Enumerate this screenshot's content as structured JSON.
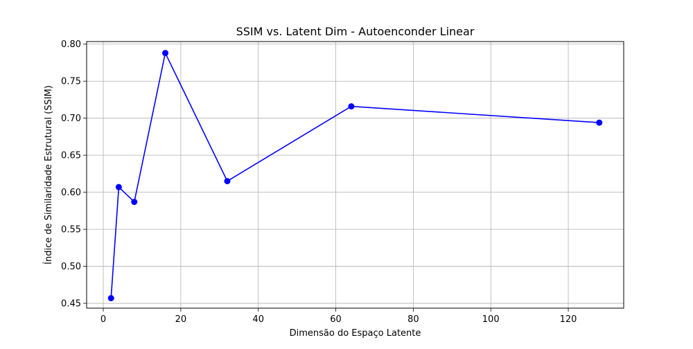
{
  "chart_data": {
    "type": "line",
    "title": "SSIM vs. Latent Dim - Autoenconder Linear",
    "xlabel": "Dimensão do Espaço Latente",
    "ylabel": "Índice de Similaridade Estrutural (SSIM)",
    "xlim": [
      -4.3,
      134.3
    ],
    "ylim": [
      0.4435,
      0.8035
    ],
    "xticks": [
      0,
      20,
      40,
      60,
      80,
      100,
      120
    ],
    "yticks": [
      0.45,
      0.5,
      0.55,
      0.6,
      0.65,
      0.7,
      0.75,
      0.8
    ],
    "xtick_labels": [
      "0",
      "20",
      "40",
      "60",
      "80",
      "100",
      "120"
    ],
    "ytick_labels": [
      "0.45",
      "0.50",
      "0.55",
      "0.60",
      "0.65",
      "0.70",
      "0.75",
      "0.80"
    ],
    "grid": true,
    "series": [
      {
        "x": [
          2,
          4,
          8,
          16,
          32,
          64,
          128
        ],
        "values": [
          0.457,
          0.607,
          0.587,
          0.788,
          0.615,
          0.716,
          0.694
        ],
        "color": "#0000ff",
        "marker": "circle"
      }
    ]
  }
}
